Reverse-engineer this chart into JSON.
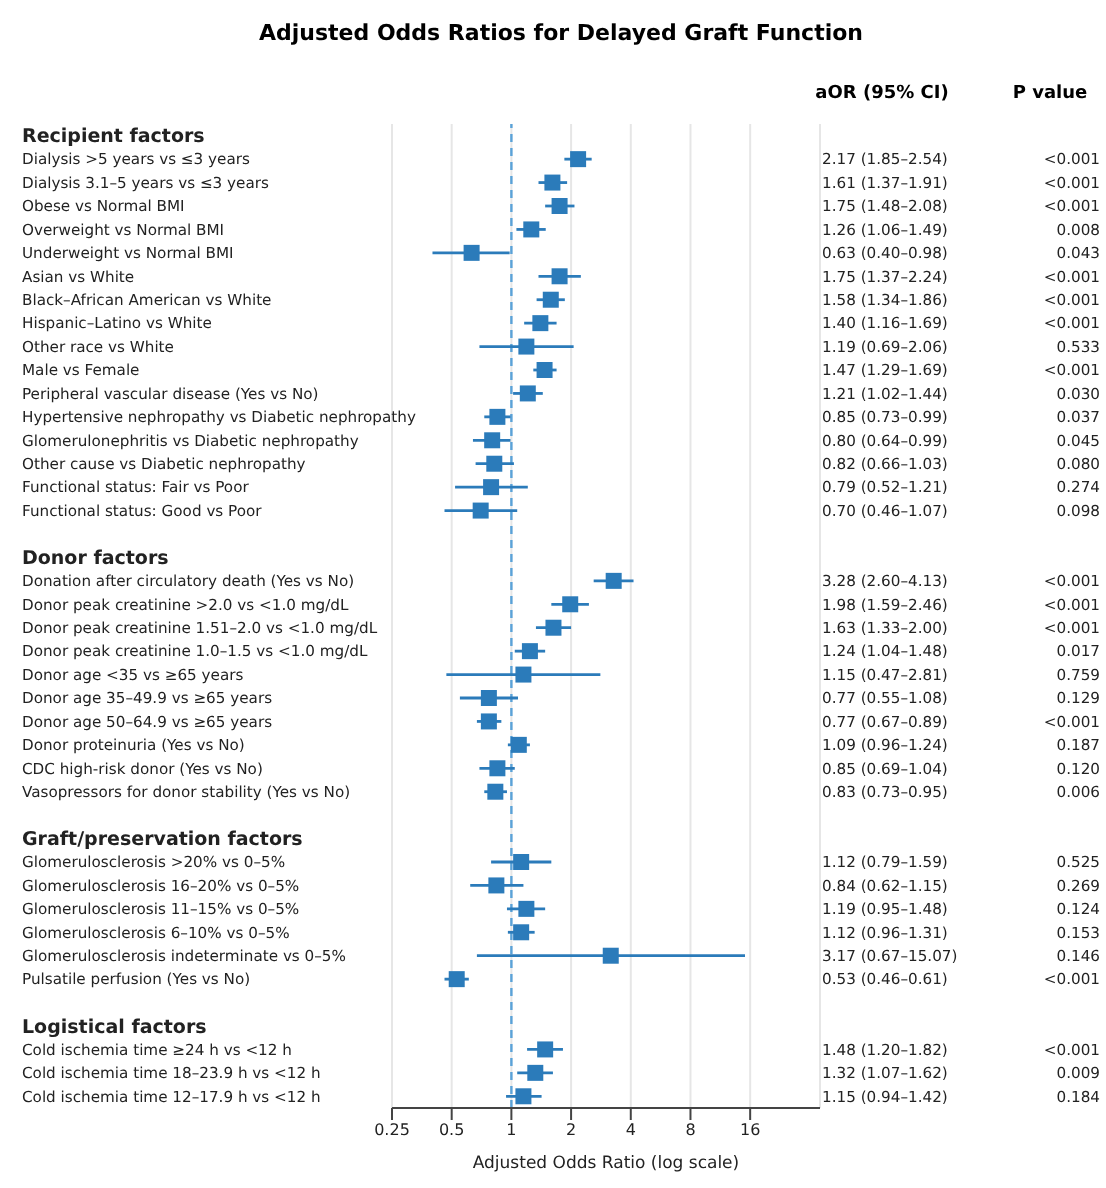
{
  "chart_data": {
    "type": "bar",
    "orientation": "horizontal",
    "title": "Adjusted Odds Ratios for Delayed Graft Function",
    "xlabel": "Adjusted Odds Ratio (log scale)",
    "categories": [
      "Recipient factors",
      "Dialysis >5 years vs ≤3 years",
      "Dialysis 3.1–5 years vs ≤3 years",
      "Obese vs Normal BMI",
      "Overweight vs Normal BMI",
      "Underweight vs Normal BMI",
      "Asian vs White",
      "Black–African American vs White",
      "Hispanic–Latino vs White",
      "Other race vs White",
      "Male vs Female",
      "Peripheral vascular disease (Yes vs No)",
      "Hypertensive nephropathy vs Diabetic nephropathy",
      "Glomerulonephritis vs Diabetic nephropathy",
      "Other cause vs Diabetic nephropathy",
      "Functional status: Fair vs Poor",
      "Functional status: Good vs Poor",
      null,
      "Donor factors",
      "Donation after circulatory death (Yes vs No)",
      "Donor peak creatinine >2.0 vs <1.0 mg/dL",
      "Donor peak creatinine 1.51–2.0 vs <1.0 mg/dL",
      "Donor peak creatinine 1.0–1.5 vs <1.0 mg/dL",
      "Donor age <35 vs ≥65 years",
      "Donor age 35–49.9 vs ≥65 years",
      "Donor age 50–64.9 vs ≥65 years",
      "Donor proteinuria (Yes vs No)",
      "CDC high-risk donor (Yes vs No)",
      "Vasopressors for donor stability (Yes vs No)",
      null,
      "Graft/preservation factors",
      "Glomerulosclerosis >20% vs 0–5%",
      "Glomerulosclerosis 16–20% vs 0–5%",
      "Glomerulosclerosis 11–15% vs 0–5%",
      "Glomerulosclerosis 6–10% vs 0–5%",
      "Glomerulosclerosis indeterminate vs 0–5%",
      "Pulsatile perfusion (Yes vs No)",
      null,
      "Logistical factors",
      "Cold ischemia time ≥24 h vs <12 h",
      "Cold ischemia time 18–23.9 h vs <12 h",
      "Cold ischemia time 12–17.9 h vs <12 h"
    ],
    "series": [
      {
        "type": "scatter",
        "color": "#2b7bba",
        "values": [
          null,
          2.17,
          1.61,
          1.75,
          1.26,
          0.63,
          1.75,
          1.58,
          1.4,
          1.19,
          1.47,
          1.21,
          0.85,
          0.8,
          0.82,
          0.79,
          0.7,
          null,
          null,
          3.28,
          1.98,
          1.63,
          1.24,
          1.15,
          0.77,
          0.77,
          1.09,
          0.85,
          0.83,
          null,
          null,
          1.12,
          0.84,
          1.19,
          1.12,
          3.17,
          0.53,
          null,
          null,
          1.48,
          1.32,
          1.15
        ],
        "errors": [
          null,
          [
            1.85,
            2.54
          ],
          [
            1.37,
            1.91
          ],
          [
            1.48,
            2.08
          ],
          [
            1.06,
            1.49
          ],
          [
            0.4,
            0.98
          ],
          [
            1.37,
            2.24
          ],
          [
            1.34,
            1.86
          ],
          [
            1.16,
            1.69
          ],
          [
            0.69,
            2.06
          ],
          [
            1.29,
            1.69
          ],
          [
            1.02,
            1.44
          ],
          [
            0.73,
            0.99
          ],
          [
            0.64,
            0.99
          ],
          [
            0.66,
            1.03
          ],
          [
            0.52,
            1.21
          ],
          [
            0.46,
            1.07
          ],
          null,
          null,
          [
            2.6,
            4.13
          ],
          [
            1.59,
            2.46
          ],
          [
            1.33,
            2.0
          ],
          [
            1.04,
            1.48
          ],
          [
            0.47,
            2.81
          ],
          [
            0.55,
            1.08
          ],
          [
            0.67,
            0.89
          ],
          [
            0.96,
            1.24
          ],
          [
            0.69,
            1.04
          ],
          [
            0.73,
            0.95
          ],
          null,
          null,
          [
            0.79,
            1.59
          ],
          [
            0.62,
            1.15
          ],
          [
            0.95,
            1.48
          ],
          [
            0.96,
            1.31
          ],
          [
            0.67,
            15.07
          ],
          [
            0.46,
            0.61
          ],
          null,
          null,
          [
            1.2,
            1.82
          ],
          [
            1.07,
            1.62
          ],
          [
            0.94,
            1.42
          ]
        ]
      }
    ],
    "xlim": [
      0.25,
      36
    ],
    "xticks": [
      0.25,
      0.5,
      1,
      2,
      4,
      8,
      16
    ],
    "log": "x",
    "grid": "x",
    "marker": "square",
    "ref_lines": [
      {
        "axis": "x",
        "value": 1,
        "color": "#5aa2d8",
        "line_style": "dashed"
      }
    ],
    "annotations": [
      "aOR (95% CI)",
      "P value",
      "2.17 (1.85–2.54)",
      "1.61 (1.37–1.91)",
      "1.75 (1.48–2.08)",
      "1.26 (1.06–1.49)",
      "0.63 (0.40–0.98)",
      "1.75 (1.37–2.24)",
      "1.58 (1.34–1.86)",
      "1.40 (1.16–1.69)",
      "1.19 (0.69–2.06)",
      "1.47 (1.29–1.69)",
      "1.21 (1.02–1.44)",
      "0.85 (0.73–0.99)",
      "0.80 (0.64–0.99)",
      "0.82 (0.66–1.03)",
      "0.79 (0.52–1.21)",
      "0.70 (0.46–1.07)",
      "3.28 (2.60–4.13)",
      "1.98 (1.59–2.46)",
      "1.63 (1.33–2.00)",
      "1.24 (1.04–1.48)",
      "1.15 (0.47–2.81)",
      "0.77 (0.55–1.08)",
      "0.77 (0.67–0.89)",
      "1.09 (0.96–1.24)",
      "0.85 (0.69–1.04)",
      "0.83 (0.73–0.95)",
      "1.12 (0.79–1.59)",
      "0.84 (0.62–1.15)",
      "1.19 (0.95–1.48)",
      "1.12 (0.96–1.31)",
      "3.17 (0.67–15.07)",
      "0.53 (0.46–0.61)",
      "1.48 (1.20–1.82)",
      "1.32 (1.07–1.62)",
      "1.15 (0.94–1.42)",
      "<0.001",
      "<0.001",
      "<0.001",
      "0.008",
      "0.043",
      "<0.001",
      "<0.001",
      "<0.001",
      "0.533",
      "<0.001",
      "0.030",
      "0.037",
      "0.045",
      "0.080",
      "0.274",
      "0.098",
      "<0.001",
      "<0.001",
      "<0.001",
      "0.017",
      "0.759",
      "0.129",
      "<0.001",
      "0.187",
      "0.120",
      "0.006",
      "0.525",
      "0.269",
      "0.124",
      "0.153",
      "0.146",
      "<0.001",
      "<0.001",
      "0.009",
      "0.184"
    ]
  }
}
